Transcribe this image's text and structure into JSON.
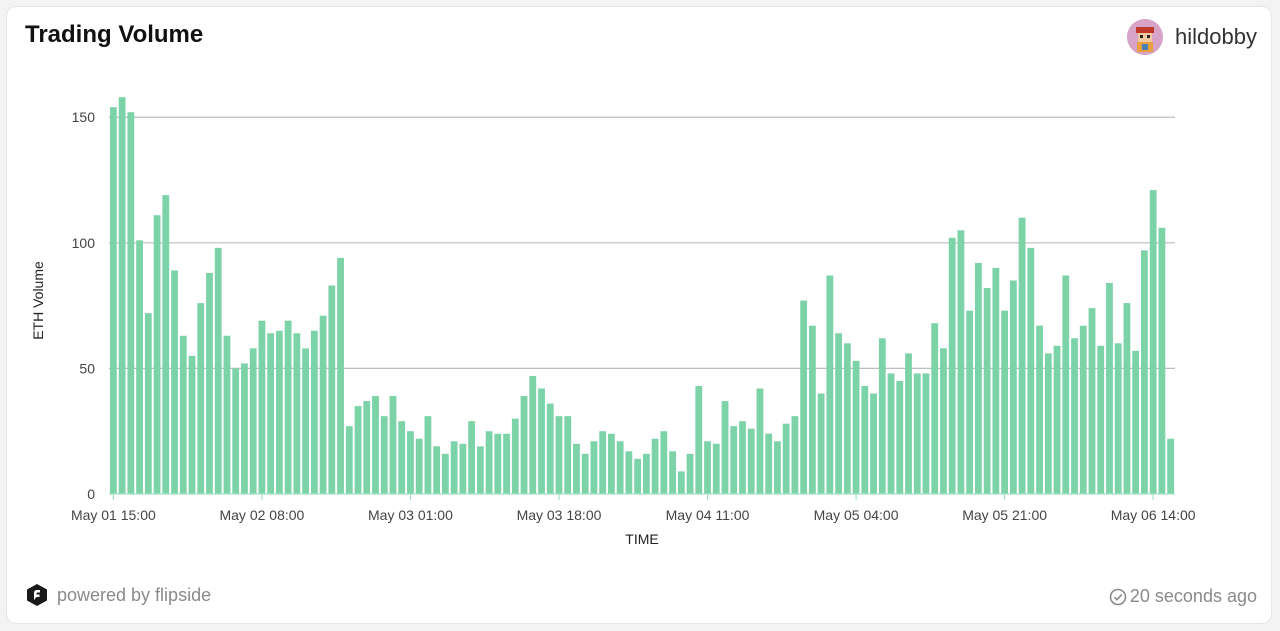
{
  "header": {
    "title": "Trading Volume",
    "username": "hildobby"
  },
  "footer": {
    "powered_by": "powered by flipside",
    "updated": "20 seconds ago"
  },
  "colors": {
    "bar": "#7dd3a8",
    "grid": "#bdbdbd",
    "axis": "#a8e3c5"
  },
  "chart_data": {
    "type": "bar",
    "xlabel": "TIME",
    "ylabel": "ETH Volume",
    "ylim": [
      0,
      170
    ],
    "grid": true,
    "legend": "none",
    "y_ticks": [
      0,
      50,
      100,
      150
    ],
    "x_tick_labels": [
      "May 01 15:00",
      "May 02 08:00",
      "May 03 01:00",
      "May 03 18:00",
      "May 04 11:00",
      "May 05 04:00",
      "May 05 21:00",
      "May 06 14:00"
    ],
    "x_start": "May 01 15:00",
    "x_interval_hours": 1,
    "values": [
      154,
      158,
      152,
      101,
      72,
      111,
      119,
      89,
      63,
      55,
      76,
      88,
      98,
      63,
      50,
      52,
      58,
      69,
      64,
      65,
      69,
      64,
      58,
      65,
      71,
      83,
      94,
      27,
      35,
      37,
      39,
      31,
      39,
      29,
      25,
      22,
      31,
      19,
      16,
      21,
      20,
      29,
      19,
      25,
      24,
      24,
      30,
      39,
      47,
      42,
      36,
      31,
      31,
      20,
      16,
      21,
      25,
      24,
      21,
      17,
      14,
      16,
      22,
      25,
      17,
      9,
      16,
      43,
      21,
      20,
      37,
      27,
      29,
      26,
      42,
      24,
      21,
      28,
      31,
      77,
      67,
      40,
      87,
      64,
      60,
      53,
      43,
      40,
      62,
      48,
      45,
      56,
      48,
      48,
      68,
      58,
      102,
      105,
      73,
      92,
      82,
      90,
      73,
      85,
      110,
      98,
      67,
      56,
      59,
      87,
      62,
      67,
      74,
      59,
      84,
      60,
      76,
      57,
      97,
      121,
      106,
      22
    ]
  }
}
